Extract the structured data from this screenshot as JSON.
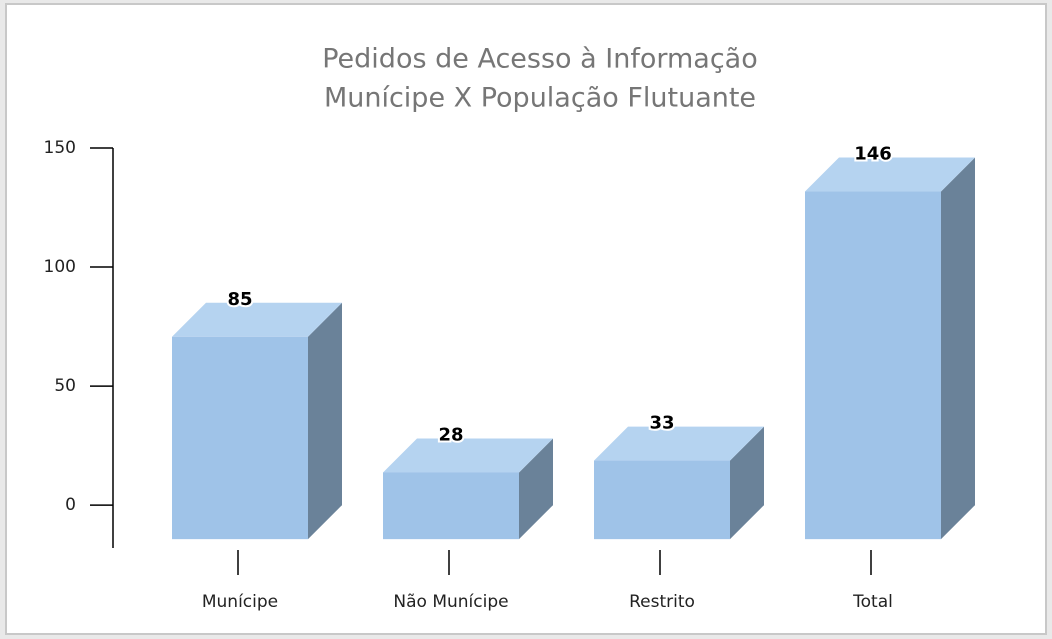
{
  "chart_data": {
    "type": "bar3d",
    "title": "Pedidos de Acesso à Informação",
    "subtitle": "Munícipe X População Flutuante",
    "categories": [
      "Munícipe",
      "Não Munícipe",
      "Restrito",
      "Total"
    ],
    "values": [
      85,
      28,
      33,
      146
    ],
    "colors": {
      "front": "#9fc3e8",
      "top": "#b5d3f0",
      "side": "#6a8299"
    },
    "ylim": [
      -18,
      150
    ],
    "yticks": [
      0,
      50,
      100,
      150
    ],
    "grid": false
  }
}
